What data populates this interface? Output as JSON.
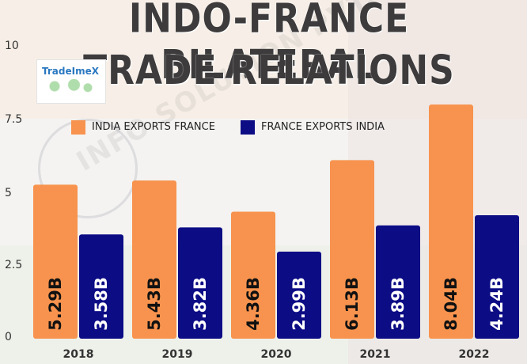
{
  "title_line1": "INDO-FRANCE BILATERAL",
  "title_line2": "TRADE RELATIONS",
  "logo_text": "TradeImeX",
  "watermark": "INFO SOLUTION PVT. LTD.",
  "colors": {
    "india": "#f7934e",
    "france": "#0c0c85"
  },
  "chart_data": {
    "type": "bar",
    "categories": [
      "2018",
      "2019",
      "2020",
      "2021",
      "2022"
    ],
    "series": [
      {
        "name": "INDIA EXPORTS FRANCE",
        "values": [
          5.29,
          5.43,
          4.36,
          6.13,
          8.04
        ],
        "labels": [
          "5.29B",
          "5.43B",
          "4.36B",
          "6.13B",
          "8.04B"
        ]
      },
      {
        "name": "FRANCE EXPORTS INDIA",
        "values": [
          3.58,
          3.82,
          2.99,
          3.89,
          4.24
        ],
        "labels": [
          "3.58B",
          "3.82B",
          "2.99B",
          "3.89B",
          "4.24B"
        ]
      }
    ],
    "yticks": [
      "0",
      "2.5",
      "5",
      "7.5",
      "10"
    ],
    "ylim": [
      0,
      10
    ],
    "legend_position": "top",
    "grid": false
  }
}
